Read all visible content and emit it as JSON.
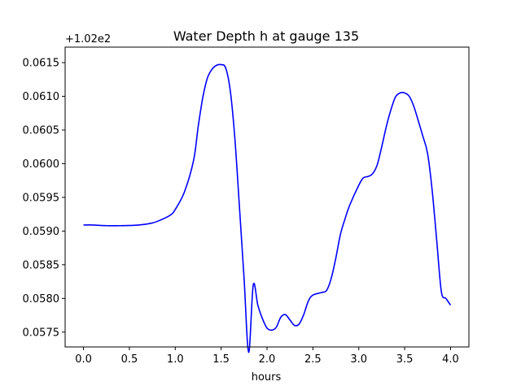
{
  "chart_data": {
    "type": "line",
    "title": "Water Depth h at gauge 135",
    "xlabel": "hours",
    "ylabel": "",
    "y_offset_label": "+1.02e2",
    "xlim": [
      -0.2,
      4.2
    ],
    "ylim": [
      0.05728,
      0.06173
    ],
    "x_ticks": [
      0.0,
      0.5,
      1.0,
      1.5,
      2.0,
      2.5,
      3.0,
      3.5,
      4.0
    ],
    "x_tick_labels": [
      "0.0",
      "0.5",
      "1.0",
      "1.5",
      "2.0",
      "2.5",
      "3.0",
      "3.5",
      "4.0"
    ],
    "y_ticks": [
      0.0575,
      0.058,
      0.0585,
      0.059,
      0.0595,
      0.06,
      0.0605,
      0.061,
      0.0615
    ],
    "y_tick_labels": [
      "0.0575",
      "0.0580",
      "0.0585",
      "0.0590",
      "0.0595",
      "0.0600",
      "0.0605",
      "0.0610",
      "0.0615"
    ],
    "grid": false,
    "series": [
      {
        "color": "#0000ff",
        "x": [
          0.0,
          0.1,
          0.25,
          0.4,
          0.6,
          0.75,
          0.85,
          0.95,
          1.0,
          1.1,
          1.2,
          1.25,
          1.3,
          1.35,
          1.4,
          1.45,
          1.5,
          1.55,
          1.6,
          1.65,
          1.7,
          1.75,
          1.8,
          1.85,
          1.9,
          1.95,
          2.0,
          2.05,
          2.1,
          2.15,
          2.2,
          2.25,
          2.3,
          2.35,
          2.4,
          2.45,
          2.5,
          2.6,
          2.65,
          2.7,
          2.75,
          2.8,
          2.85,
          2.9,
          3.0,
          3.05,
          3.1,
          3.15,
          3.2,
          3.25,
          3.3,
          3.35,
          3.4,
          3.45,
          3.5,
          3.55,
          3.6,
          3.65,
          3.7,
          3.75,
          3.8,
          3.85,
          3.9,
          3.95,
          4.0
        ],
        "y": [
          0.05909,
          0.05909,
          0.05908,
          0.05908,
          0.05909,
          0.05912,
          0.05917,
          0.05924,
          0.05932,
          0.05958,
          0.06005,
          0.06055,
          0.06098,
          0.06127,
          0.0614,
          0.06146,
          0.06147,
          0.06142,
          0.06108,
          0.06037,
          0.05935,
          0.0583,
          0.0572,
          0.0582,
          0.0579,
          0.0577,
          0.05756,
          0.05753,
          0.05757,
          0.05772,
          0.05776,
          0.05768,
          0.0576,
          0.05762,
          0.05776,
          0.05796,
          0.05805,
          0.05809,
          0.05812,
          0.0583,
          0.0586,
          0.05895,
          0.05918,
          0.05938,
          0.05968,
          0.05979,
          0.05981,
          0.05985,
          0.05998,
          0.06025,
          0.06055,
          0.0608,
          0.06099,
          0.06105,
          0.06105,
          0.061,
          0.06085,
          0.06063,
          0.0604,
          0.06015,
          0.0596,
          0.05885,
          0.0581,
          0.058,
          0.0579
        ]
      }
    ]
  }
}
